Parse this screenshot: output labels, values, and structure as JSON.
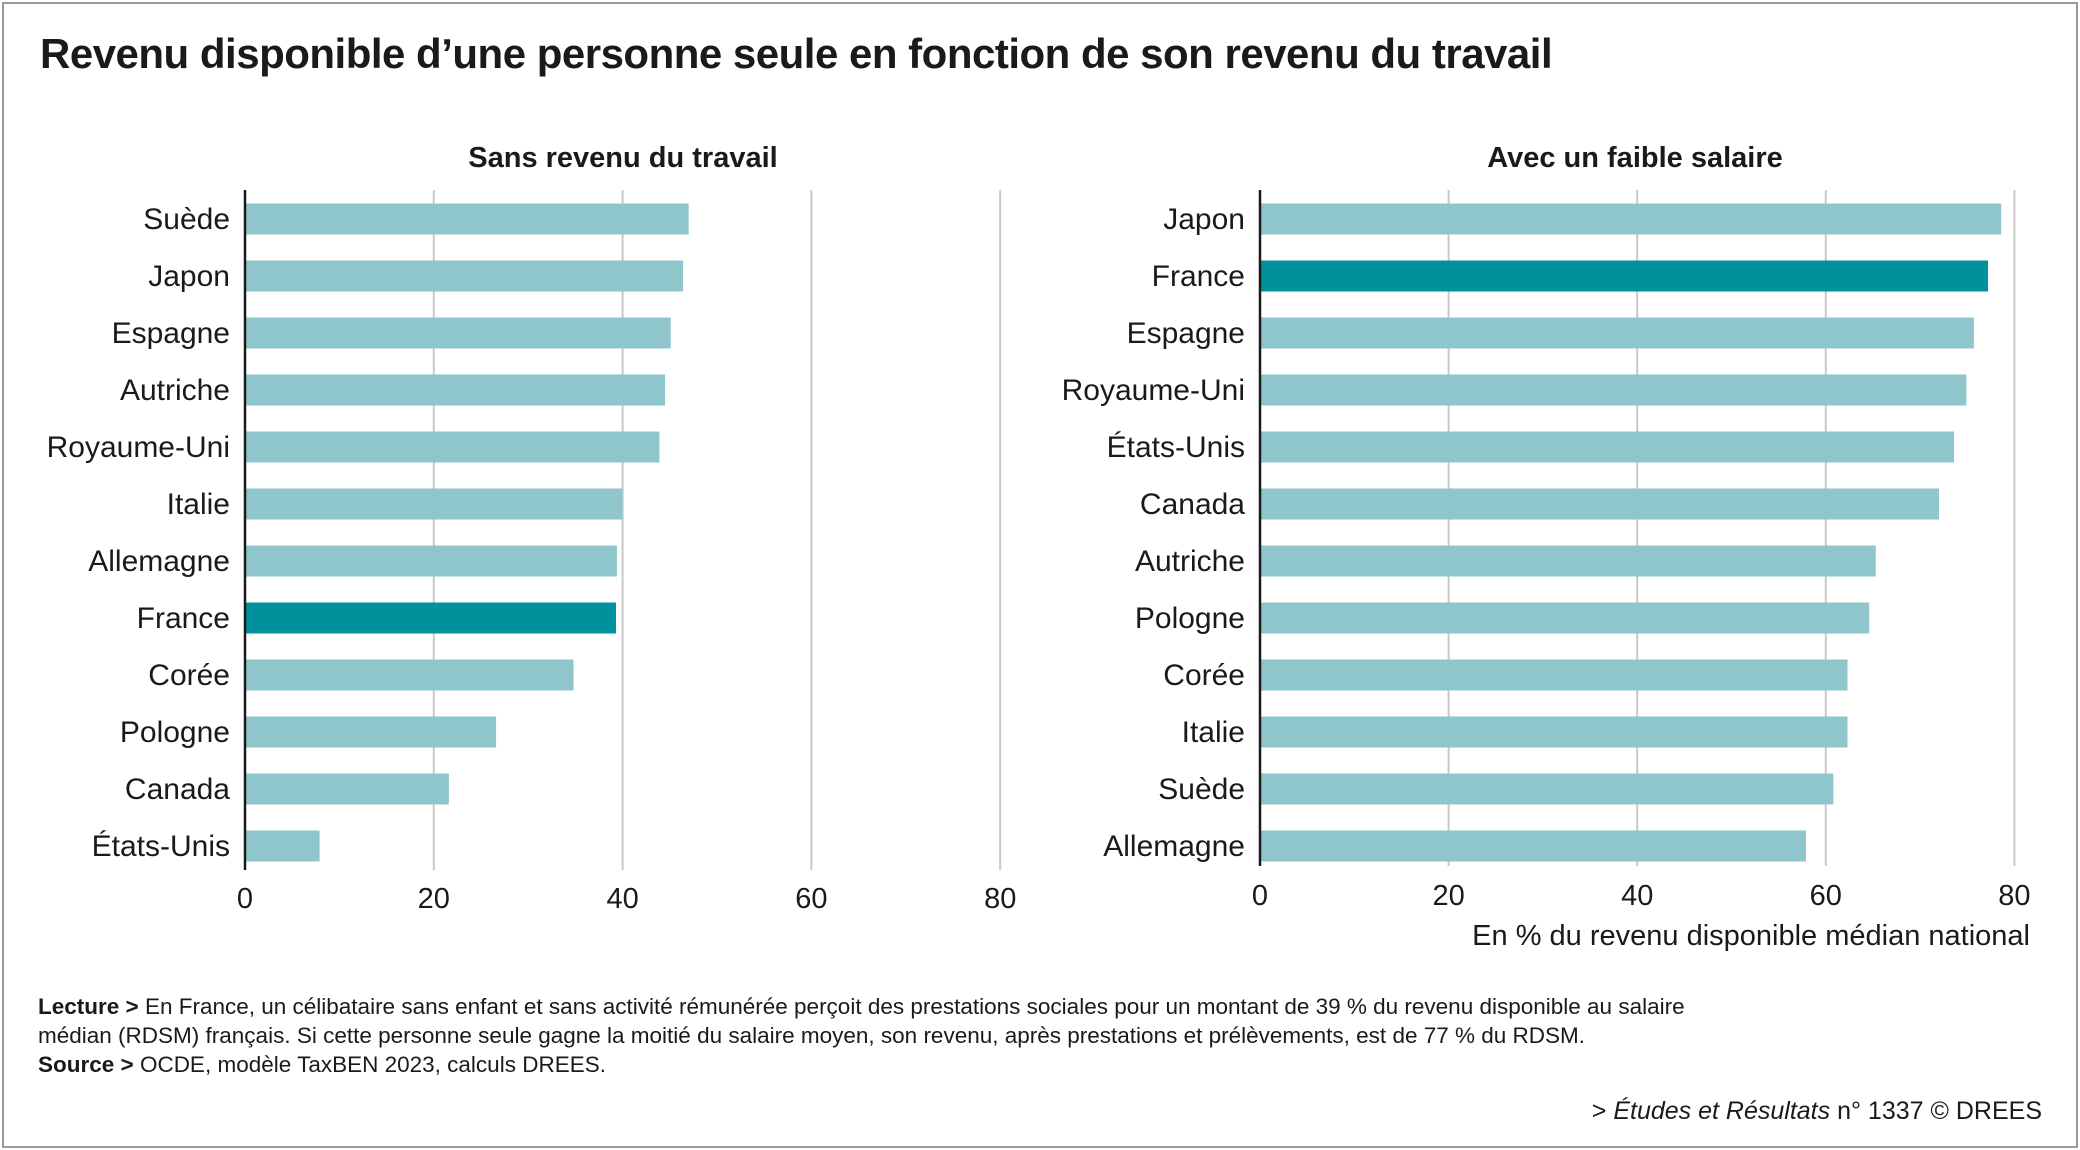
{
  "title": "Revenu disponible d’une personne seule en fonction de son revenu du travail",
  "chart_data": [
    {
      "type": "bar",
      "orientation": "horizontal",
      "title": "Sans revenu du travail",
      "categories": [
        "Suède",
        "Japon",
        "Espagne",
        "Autriche",
        "Royaume-Uni",
        "Italie",
        "Allemagne",
        "France",
        "Corée",
        "Pologne",
        "Canada",
        "États-Unis"
      ],
      "values": [
        47,
        46.4,
        45.1,
        44.5,
        43.9,
        40,
        39.4,
        39.3,
        34.8,
        26.6,
        21.6,
        7.9
      ],
      "highlight": "France",
      "xlim": [
        0,
        80
      ],
      "xticks": [
        "0",
        "20",
        "40",
        "60",
        "80"
      ],
      "grid": true
    },
    {
      "type": "bar",
      "orientation": "horizontal",
      "title": "Avec un faible salaire",
      "categories": [
        "Japon",
        "France",
        "Espagne",
        "Royaume-Uni",
        "États-Unis",
        "Canada",
        "Autriche",
        "Pologne",
        "Corée",
        "Italie",
        "Suède",
        "Allemagne"
      ],
      "values": [
        78.6,
        77.2,
        75.7,
        74.9,
        73.6,
        72,
        65.3,
        64.6,
        62.3,
        62.3,
        60.8,
        57.9
      ],
      "highlight": "France",
      "xlim": [
        0,
        80
      ],
      "xticks": [
        "0",
        "20",
        "40",
        "60",
        "80"
      ],
      "xlabel": "En % du revenu disponible médian national",
      "grid": true
    }
  ],
  "colors": {
    "bar": "#8fc6cc",
    "highlight": "#00929c",
    "grid": "#c8c8c8",
    "axis": "#1a1a1a"
  },
  "notes": {
    "lecture_label": "Lecture >",
    "lecture_line1": "En France, un célibataire sans enfant et sans activité rémunérée perçoit des prestations sociales pour un montant de 39 % du revenu disponible au salaire",
    "lecture_line2": "médian (RDSM) français. Si cette personne seule gagne la moitié du salaire moyen, son revenu, après prestations et prélèvements, est de 77 % du RDSM.",
    "source_label": "Source >",
    "source_text": "OCDE, modèle TaxBEN 2023, calculs DREES."
  },
  "credit": {
    "prefix": "> ",
    "publication": "Études et Résultats",
    "number": " n° 1337 © DREES"
  }
}
